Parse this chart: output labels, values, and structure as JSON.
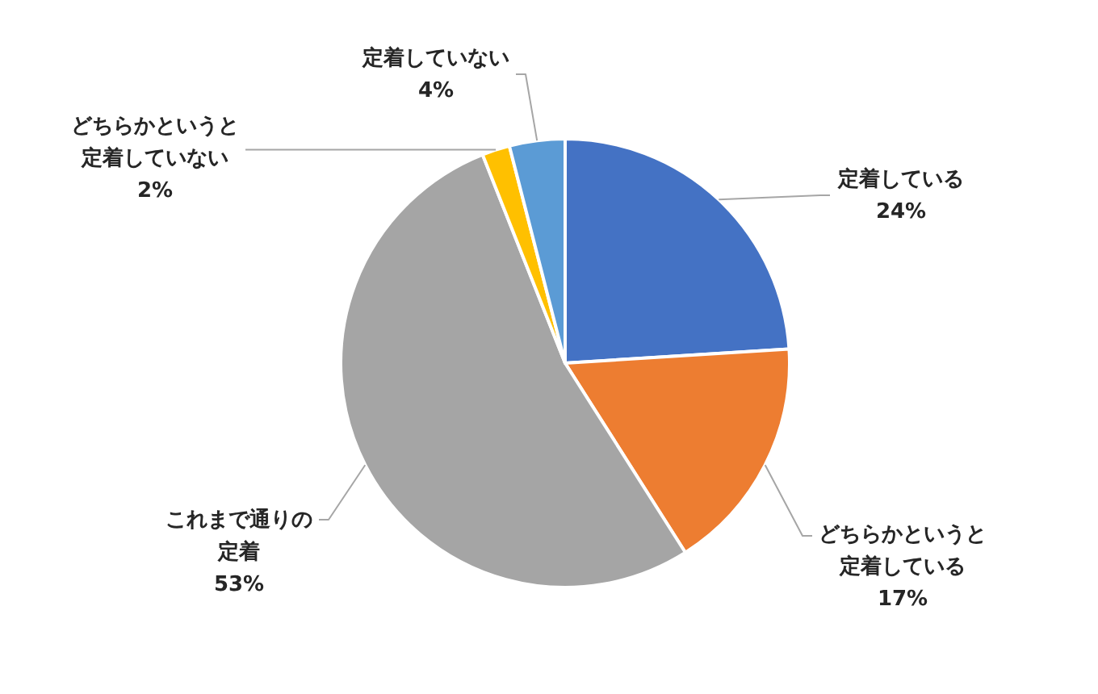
{
  "chart_data": {
    "type": "pie",
    "categories": [
      "定着している",
      "どちらかというと定着している",
      "これまで通りの定着",
      "どちらかというと定着していない",
      "定着していない"
    ],
    "values": [
      24,
      17,
      53,
      2,
      4
    ],
    "colors": [
      "#4472c4",
      "#ed7d31",
      "#a5a5a5",
      "#ffc000",
      "#5b9bd5"
    ],
    "value_labels": [
      "24%",
      "17%",
      "53%",
      "2%",
      "4%"
    ]
  }
}
